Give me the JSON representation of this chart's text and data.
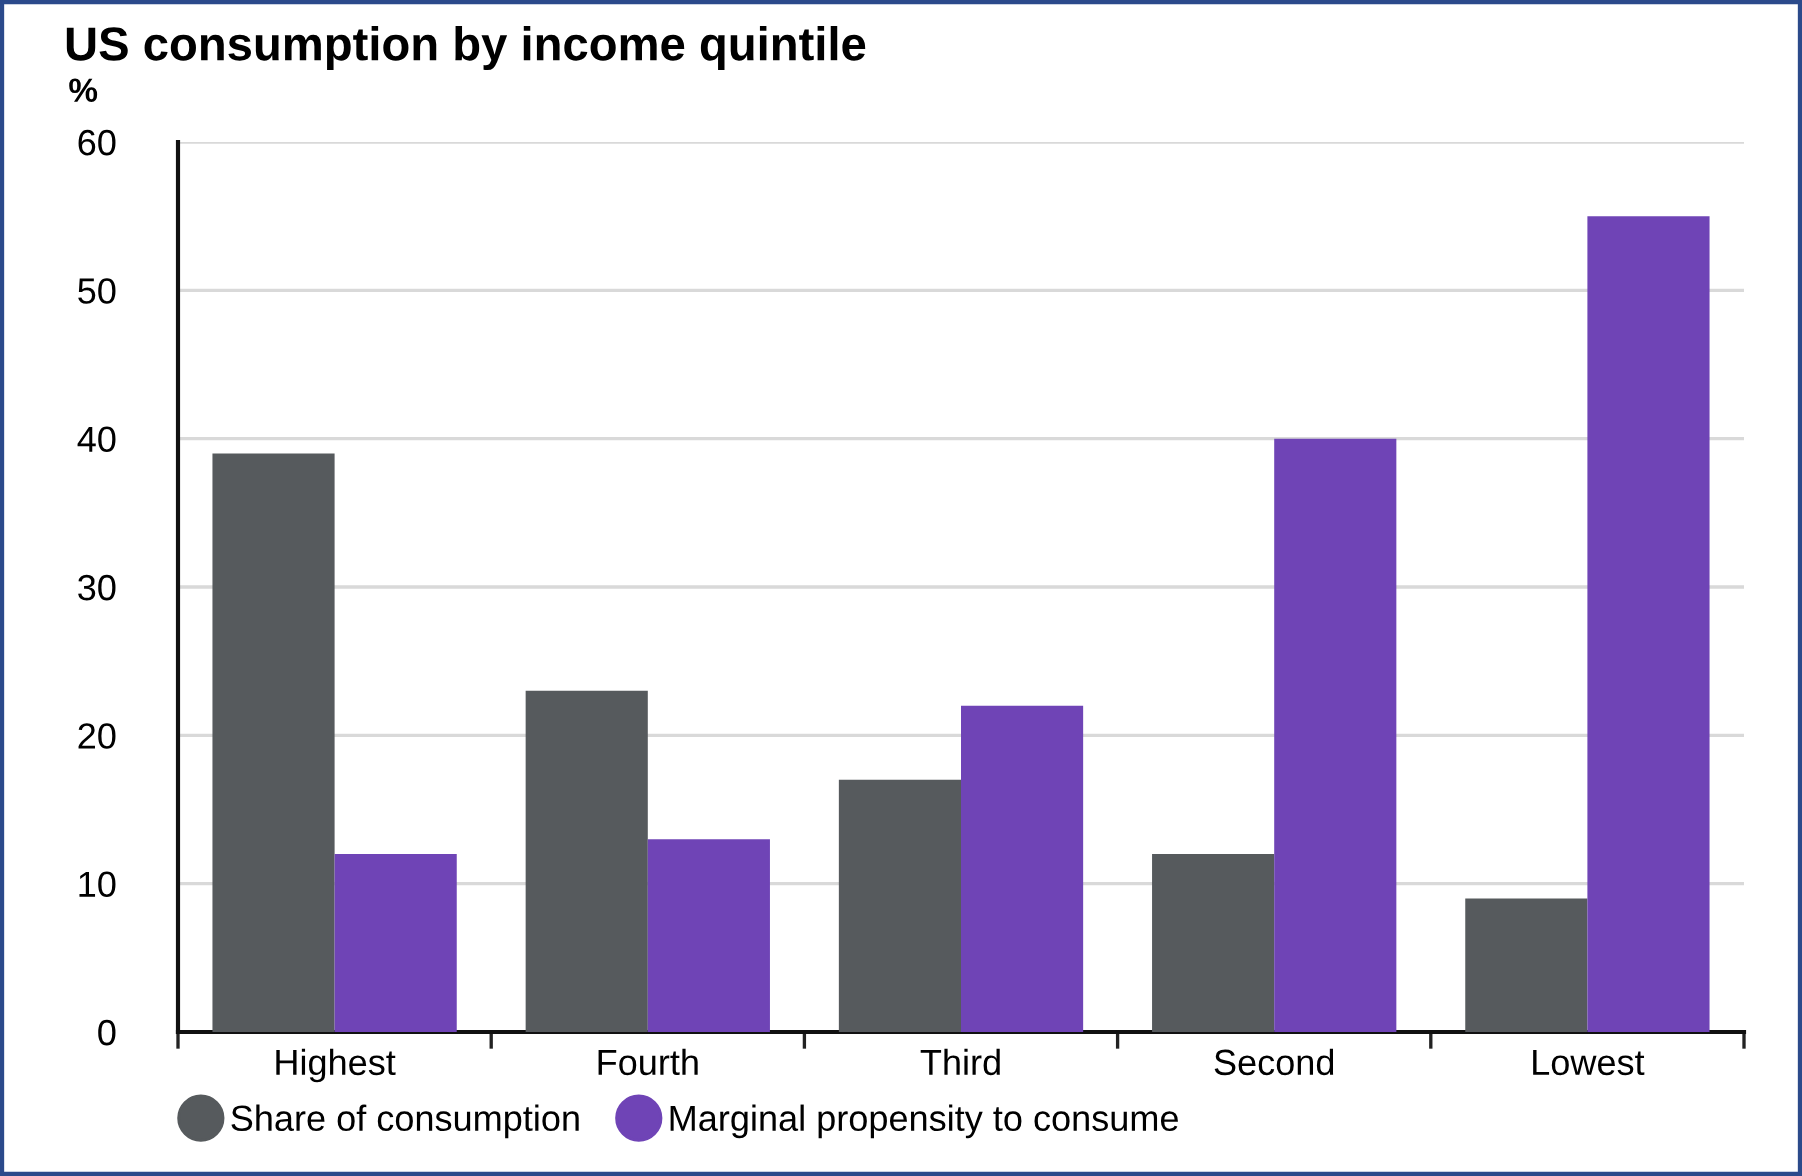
{
  "chart_data": {
    "type": "bar",
    "title": "US consumption by income quintile",
    "ylabel": "%",
    "categories": [
      "Highest",
      "Fourth",
      "Third",
      "Second",
      "Lowest"
    ],
    "series": [
      {
        "name": "Share of consumption",
        "color": "#565a5d",
        "values": [
          39,
          23,
          17,
          12,
          9
        ]
      },
      {
        "name": "Marginal propensity to consume",
        "color": "#6f44b6",
        "values": [
          12,
          13,
          22,
          40,
          55
        ]
      }
    ],
    "ylim": [
      0,
      60
    ],
    "yticks": [
      0,
      10,
      20,
      30,
      40,
      50,
      60
    ],
    "grid": "y",
    "legend": "bottom"
  }
}
